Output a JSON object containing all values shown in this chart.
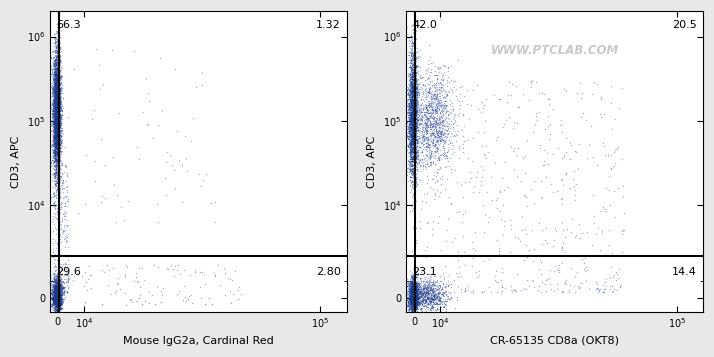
{
  "panel1": {
    "xlabel": "Mouse IgG2a, Cardinal Red",
    "ylabel": "CD3, APC",
    "quadrant_labels": [
      "66.3",
      "1.32",
      "29.6",
      "2.80"
    ],
    "gate_x": 500,
    "gate_y": 2500,
    "upper_left": {
      "x_mean": -500,
      "x_std": 800,
      "y_log_mean": 5.1,
      "y_log_std": 0.38,
      "n": 3500
    },
    "lower_left": {
      "x_mean": -300,
      "x_std": 900,
      "y_mean": 200,
      "y_std": 500,
      "n": 1600
    },
    "upper_right_sparse": {
      "n": 70,
      "x_min": 600,
      "x_max": 60000,
      "y_log_min": 3.8,
      "y_log_max": 5.9
    },
    "lower_right_sparse": {
      "n": 120,
      "x_min": 600,
      "x_max": 70000,
      "y_min": -400,
      "y_max": 2000
    },
    "mid_scatter": {
      "n": 300,
      "x_min": -2000,
      "x_max": 4000,
      "y_log_min": 2.5,
      "y_log_max": 4.5
    }
  },
  "panel2": {
    "xlabel": "CR-65135 CD8a (OKT8)",
    "ylabel": "CD3, APC",
    "quadrant_labels": [
      "42.0",
      "20.5",
      "23.1",
      "14.4"
    ],
    "watermark": "WWW.PTCLAB.COM",
    "gate_x": 500,
    "gate_y": 2500,
    "upper_left": {
      "x_mean": -500,
      "x_std": 900,
      "y_log_mean": 5.05,
      "y_log_std": 0.38,
      "n": 2500
    },
    "upper_right": {
      "x_mean": 7000,
      "x_std": 4000,
      "y_log_mean": 5.0,
      "y_log_std": 0.3,
      "n": 1200
    },
    "lower_left": {
      "x_mean": -300,
      "x_std": 900,
      "y_mean": 200,
      "y_std": 500,
      "n": 1400
    },
    "lower_right": {
      "x_mean": 5000,
      "x_std": 4000,
      "y_mean": 200,
      "y_std": 500,
      "n": 800
    },
    "mid_scatter": {
      "n": 600,
      "x_min": -2000,
      "x_max": 80000,
      "y_log_min": 2.5,
      "y_log_max": 5.5
    }
  },
  "background_color": "#e8e8e8",
  "plot_bg_color": "#ffffff",
  "figsize": [
    7.14,
    3.57
  ],
  "dpi": 100,
  "font_size_labels": 8,
  "font_size_ticks": 7,
  "font_size_quadrant": 8,
  "xlim": [
    -3000,
    110000
  ],
  "ylim_low": -800,
  "ylim_high": 2000000
}
